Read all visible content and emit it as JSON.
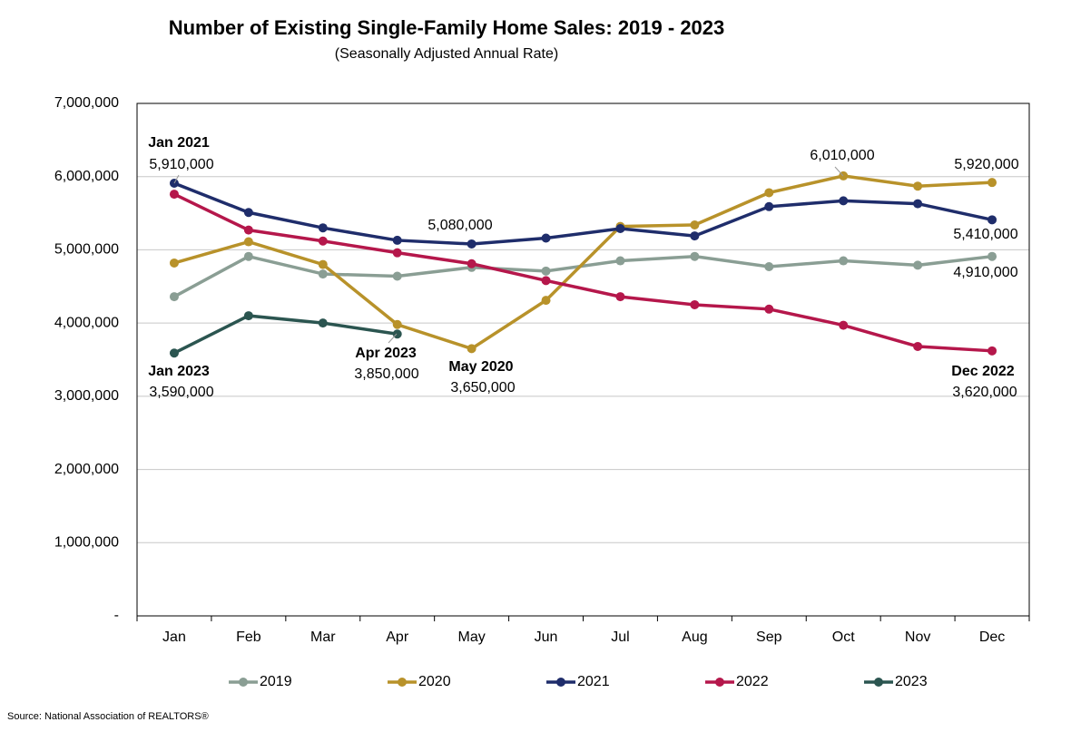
{
  "chart_data": {
    "type": "line",
    "title": "Number of Existing Single-Family Home Sales: 2019 - 2023",
    "subtitle": "(Seasonally Adjusted Annual Rate)",
    "source": "Source: National Association of REALTORS®",
    "categories": [
      "Jan",
      "Feb",
      "Mar",
      "Apr",
      "May",
      "Jun",
      "Jul",
      "Aug",
      "Sep",
      "Oct",
      "Nov",
      "Dec"
    ],
    "ylim": [
      0,
      7000000
    ],
    "yticks": [
      {
        "value": 0,
        "label": "-"
      },
      {
        "value": 1000000,
        "label": "1,000,000"
      },
      {
        "value": 2000000,
        "label": "2,000,000"
      },
      {
        "value": 3000000,
        "label": "3,000,000"
      },
      {
        "value": 4000000,
        "label": "4,000,000"
      },
      {
        "value": 5000000,
        "label": "5,000,000"
      },
      {
        "value": 6000000,
        "label": "6,000,000"
      },
      {
        "value": 7000000,
        "label": "7,000,000"
      }
    ],
    "grid": true,
    "legend": "bottom",
    "series": [
      {
        "name": "2019",
        "color": "#8a9e94",
        "values": [
          4360000,
          4910000,
          4670000,
          4640000,
          4760000,
          4710000,
          4850000,
          4910000,
          4770000,
          4850000,
          4790000,
          4910000
        ],
        "value_labels": [
          null,
          null,
          null,
          null,
          null,
          null,
          null,
          null,
          null,
          null,
          null,
          "4,910,000"
        ],
        "point_labels": [
          null,
          null,
          null,
          null,
          null,
          null,
          null,
          null,
          null,
          null,
          null,
          null
        ]
      },
      {
        "name": "2020",
        "color": "#b8922a",
        "values": [
          4820000,
          5110000,
          4800000,
          3980000,
          3650000,
          4310000,
          5320000,
          5340000,
          5780000,
          6010000,
          5870000,
          5920000
        ],
        "value_labels": [
          null,
          null,
          null,
          null,
          "3,650,000",
          null,
          null,
          null,
          null,
          "6,010,000",
          null,
          "5,920,000"
        ],
        "point_labels": [
          null,
          null,
          null,
          null,
          "May 2020",
          null,
          null,
          null,
          null,
          null,
          null,
          null
        ]
      },
      {
        "name": "2021",
        "color": "#1f2d6b",
        "values": [
          5910000,
          5510000,
          5300000,
          5130000,
          5080000,
          5160000,
          5290000,
          5190000,
          5590000,
          5670000,
          5630000,
          5410000
        ],
        "value_labels": [
          "5,910,000",
          null,
          null,
          null,
          "5,080,000",
          null,
          null,
          null,
          null,
          null,
          null,
          "5,410,000"
        ],
        "point_labels": [
          "Jan 2021",
          null,
          null,
          null,
          null,
          null,
          null,
          null,
          null,
          null,
          null,
          null
        ]
      },
      {
        "name": "2022",
        "color": "#b5174b",
        "values": [
          5760000,
          5270000,
          5120000,
          4960000,
          4810000,
          4580000,
          4360000,
          4250000,
          4190000,
          3970000,
          3680000,
          3620000
        ],
        "value_labels": [
          null,
          null,
          null,
          null,
          null,
          null,
          null,
          null,
          null,
          null,
          null,
          "3,620,000"
        ],
        "point_labels": [
          null,
          null,
          null,
          null,
          null,
          null,
          null,
          null,
          null,
          null,
          null,
          "Dec 2022"
        ]
      },
      {
        "name": "2023",
        "color": "#2b5550",
        "values": [
          3590000,
          4100000,
          4000000,
          3850000,
          null,
          null,
          null,
          null,
          null,
          null,
          null,
          null
        ],
        "value_labels": [
          "3,590,000",
          null,
          null,
          "3,850,000",
          null,
          null,
          null,
          null,
          null,
          null,
          null,
          null
        ],
        "point_labels": [
          "Jan 2023",
          null,
          null,
          "Apr 2023",
          null,
          null,
          null,
          null,
          null,
          null,
          null,
          null
        ]
      }
    ]
  }
}
